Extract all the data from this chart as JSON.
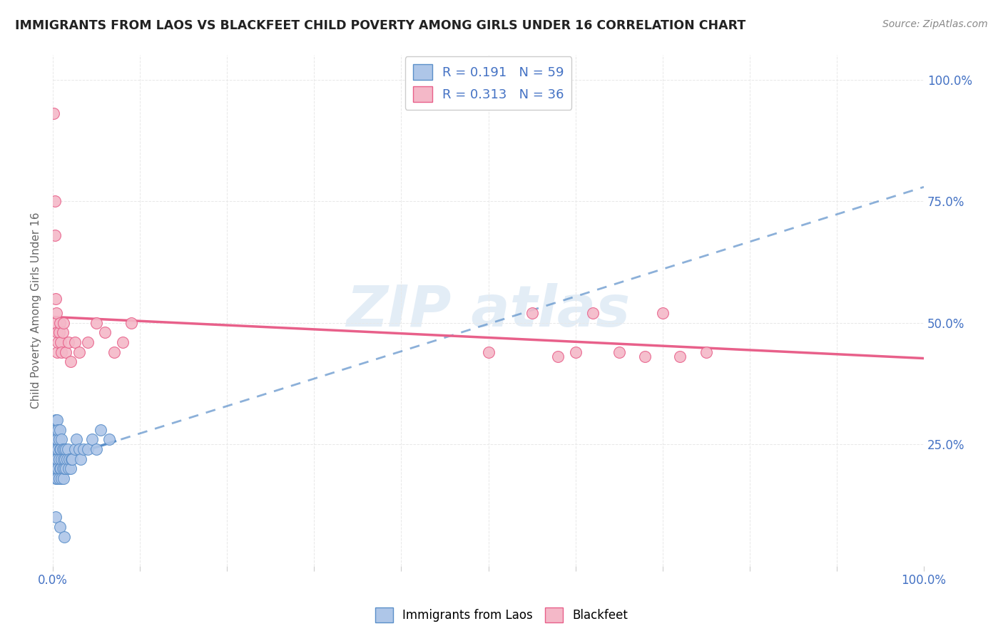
{
  "title": "IMMIGRANTS FROM LAOS VS BLACKFEET CHILD POVERTY AMONG GIRLS UNDER 16 CORRELATION CHART",
  "source": "Source: ZipAtlas.com",
  "ylabel": "Child Poverty Among Girls Under 16",
  "legend_r1": "R = 0.191",
  "legend_n1": "N = 59",
  "legend_r2": "R = 0.313",
  "legend_n2": "N = 36",
  "blue_fill": "#aec6e8",
  "pink_fill": "#f4b8c8",
  "blue_edge": "#5b8fc9",
  "pink_edge": "#e8608a",
  "blue_line_color": "#5b8fc9",
  "pink_line_color": "#e8608a",
  "text_color": "#4472c4",
  "title_color": "#222222",
  "source_color": "#888888",
  "watermark_color": "#ccdff0",
  "background_color": "#ffffff",
  "grid_color": "#e8e8e8",
  "blue_x": [
    0.001,
    0.001,
    0.002,
    0.002,
    0.002,
    0.003,
    0.003,
    0.003,
    0.003,
    0.004,
    0.004,
    0.004,
    0.005,
    0.005,
    0.005,
    0.005,
    0.006,
    0.006,
    0.006,
    0.007,
    0.007,
    0.007,
    0.008,
    0.008,
    0.008,
    0.009,
    0.009,
    0.01,
    0.01,
    0.01,
    0.011,
    0.011,
    0.012,
    0.012,
    0.013,
    0.013,
    0.014,
    0.015,
    0.015,
    0.016,
    0.017,
    0.018,
    0.019,
    0.02,
    0.021,
    0.022,
    0.025,
    0.027,
    0.03,
    0.032,
    0.035,
    0.04,
    0.045,
    0.05,
    0.055,
    0.065,
    0.003,
    0.008,
    0.013
  ],
  "blue_y": [
    0.22,
    0.26,
    0.2,
    0.24,
    0.28,
    0.18,
    0.22,
    0.26,
    0.3,
    0.2,
    0.24,
    0.28,
    0.18,
    0.22,
    0.26,
    0.3,
    0.2,
    0.24,
    0.28,
    0.18,
    0.22,
    0.26,
    0.2,
    0.24,
    0.28,
    0.2,
    0.24,
    0.18,
    0.22,
    0.26,
    0.2,
    0.24,
    0.18,
    0.22,
    0.2,
    0.24,
    0.22,
    0.2,
    0.24,
    0.22,
    0.24,
    0.2,
    0.22,
    0.2,
    0.22,
    0.22,
    0.24,
    0.26,
    0.24,
    0.22,
    0.24,
    0.24,
    0.26,
    0.24,
    0.28,
    0.26,
    0.1,
    0.08,
    0.06
  ],
  "pink_x": [
    0.001,
    0.002,
    0.002,
    0.003,
    0.003,
    0.004,
    0.005,
    0.005,
    0.006,
    0.007,
    0.008,
    0.009,
    0.01,
    0.011,
    0.012,
    0.015,
    0.018,
    0.02,
    0.025,
    0.03,
    0.04,
    0.05,
    0.06,
    0.07,
    0.08,
    0.09,
    0.5,
    0.55,
    0.58,
    0.6,
    0.62,
    0.65,
    0.68,
    0.7,
    0.72,
    0.75
  ],
  "pink_y": [
    0.93,
    0.75,
    0.68,
    0.55,
    0.5,
    0.52,
    0.48,
    0.44,
    0.46,
    0.48,
    0.5,
    0.46,
    0.44,
    0.48,
    0.5,
    0.44,
    0.46,
    0.42,
    0.46,
    0.44,
    0.46,
    0.5,
    0.48,
    0.44,
    0.46,
    0.5,
    0.44,
    0.52,
    0.43,
    0.44,
    0.52,
    0.44,
    0.43,
    0.52,
    0.43,
    0.44
  ],
  "xlim": [
    0.0,
    1.0
  ],
  "ylim": [
    0.0,
    1.05
  ],
  "xtick_pos": [
    0.0,
    0.1,
    0.2,
    0.3,
    0.4,
    0.5,
    0.6,
    0.7,
    0.8,
    0.9,
    1.0
  ],
  "ytick_pos": [
    0.0,
    0.25,
    0.5,
    0.75,
    1.0
  ],
  "ytick_labels": [
    "",
    "25.0%",
    "50.0%",
    "75.0%",
    "100.0%"
  ]
}
